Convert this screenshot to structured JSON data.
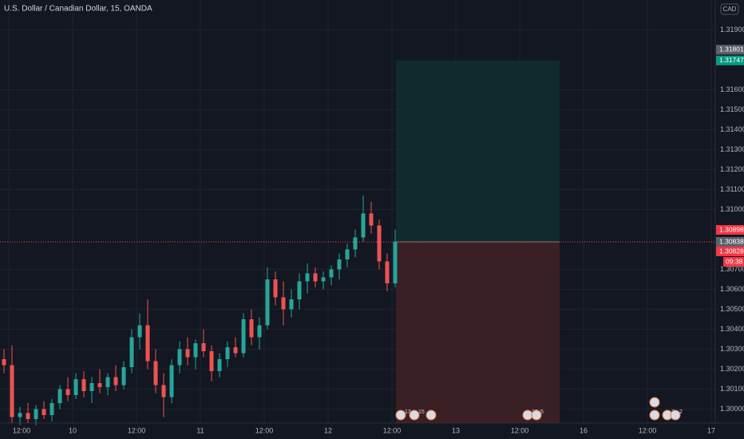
{
  "chart_data": {
    "type": "candlestick",
    "title": "U.S. Dollar / Canadian Dollar, 15, OANDA",
    "currency": "CAD",
    "up_color": "#26a69a",
    "down_color": "#ef5350",
    "grid": true,
    "ylim": [
      1.2993,
      1.3205
    ],
    "yticks": [
      {
        "value": 1.319,
        "label": "1.31900"
      },
      {
        "value": 1.316,
        "label": "1.31600"
      },
      {
        "value": 1.315,
        "label": "1.31500"
      },
      {
        "value": 1.314,
        "label": "1.31400"
      },
      {
        "value": 1.313,
        "label": "1.31300"
      },
      {
        "value": 1.312,
        "label": "1.31200"
      },
      {
        "value": 1.311,
        "label": "1.31100"
      },
      {
        "value": 1.31,
        "label": "1.31000"
      },
      {
        "value": 1.307,
        "label": "1.30700"
      },
      {
        "value": 1.306,
        "label": "1.30600"
      },
      {
        "value": 1.305,
        "label": "1.30500"
      },
      {
        "value": 1.304,
        "label": "1.30400"
      },
      {
        "value": 1.303,
        "label": "1.30300"
      },
      {
        "value": 1.302,
        "label": "1.30200"
      },
      {
        "value": 1.301,
        "label": "1.30100"
      },
      {
        "value": 1.3,
        "label": "1.30000"
      }
    ],
    "x_labels": [
      "12:00",
      "10",
      "12:00",
      "11",
      "12:00",
      "12",
      "12:00",
      "13",
      "12:00",
      "16",
      "12:00",
      "17"
    ],
    "open": [
      1.3025,
      1.3022,
      1.2996,
      1.2998,
      1.2995,
      1.3,
      1.2997,
      1.3003,
      1.301,
      1.3007,
      1.3015,
      1.3009,
      1.3013,
      1.3011,
      1.3016,
      1.3012,
      1.3021,
      1.3036,
      1.3042,
      1.3024,
      1.3012,
      1.3006,
      1.3022,
      1.303,
      1.3026,
      1.3033,
      1.3029,
      1.3019,
      1.3025,
      1.3031,
      1.3028,
      1.3045,
      1.3036,
      1.3042,
      1.3065,
      1.3056,
      1.305,
      1.3055,
      1.3064,
      1.3068,
      1.3064,
      1.3066,
      1.307,
      1.3075,
      1.308,
      1.3086,
      1.3098,
      1.3092,
      1.3074,
      1.3063
    ],
    "high": [
      1.303,
      1.3032,
      1.3001,
      1.3003,
      1.3002,
      1.3004,
      1.3005,
      1.3012,
      1.3016,
      1.3018,
      1.3019,
      1.3016,
      1.302,
      1.3018,
      1.3022,
      1.3024,
      1.304,
      1.3048,
      1.3055,
      1.303,
      1.3018,
      1.3025,
      1.3034,
      1.3036,
      1.3035,
      1.304,
      1.3032,
      1.3028,
      1.3034,
      1.3036,
      1.3048,
      1.305,
      1.3046,
      1.3071,
      1.3069,
      1.3064,
      1.306,
      1.3068,
      1.3073,
      1.3071,
      1.3069,
      1.3072,
      1.3078,
      1.3083,
      1.309,
      1.3107,
      1.3104,
      1.3095,
      1.3078,
      1.309
    ],
    "low": [
      1.3018,
      1.2993,
      1.2992,
      1.2993,
      1.2992,
      1.2995,
      1.2994,
      1.3,
      1.3004,
      1.3005,
      1.3006,
      1.3003,
      1.3008,
      1.3007,
      1.3009,
      1.301,
      1.3018,
      1.303,
      1.302,
      1.3008,
      1.2996,
      1.3003,
      1.3018,
      1.3022,
      1.302,
      1.3026,
      1.3014,
      1.3016,
      1.3021,
      1.3026,
      1.3026,
      1.3032,
      1.303,
      1.304,
      1.3052,
      1.3042,
      1.3046,
      1.305,
      1.3058,
      1.3061,
      1.306,
      1.3062,
      1.3065,
      1.3071,
      1.3076,
      1.3084,
      1.3088,
      1.307,
      1.3059,
      1.3061
    ],
    "close": [
      1.3022,
      1.2996,
      1.2998,
      1.2995,
      1.3,
      1.2997,
      1.3003,
      1.301,
      1.3007,
      1.3015,
      1.3009,
      1.3013,
      1.3011,
      1.3016,
      1.3012,
      1.3021,
      1.3036,
      1.3042,
      1.3024,
      1.3012,
      1.3006,
      1.3022,
      1.303,
      1.3026,
      1.3033,
      1.3029,
      1.3019,
      1.3025,
      1.3031,
      1.3028,
      1.3045,
      1.3036,
      1.3042,
      1.3065,
      1.3056,
      1.305,
      1.3055,
      1.3064,
      1.3068,
      1.3064,
      1.3066,
      1.307,
      1.3075,
      1.308,
      1.3086,
      1.3098,
      1.3092,
      1.3074,
      1.3063,
      1.30838
    ],
    "position": {
      "target": 1.31747,
      "entry": 1.30838,
      "profit_color": "#0f2b2e",
      "loss_color": "#3a1f24"
    },
    "price_labels": [
      {
        "value": 1.31801,
        "label": "1.31801",
        "color": "#5d606b"
      },
      {
        "value": 1.31747,
        "label": "1.31747",
        "color": "#089981"
      },
      {
        "value": 1.30898,
        "label": "1.30898",
        "color": "#f23645"
      },
      {
        "value": 1.30838,
        "label": "1.30838",
        "color": "#5d606b"
      },
      {
        "value": 1.30828,
        "label": "1.30828",
        "color": "#f23645"
      }
    ],
    "countdown": "09:38",
    "events": [
      "13",
      "15",
      "30",
      "5",
      "3",
      "2"
    ]
  }
}
